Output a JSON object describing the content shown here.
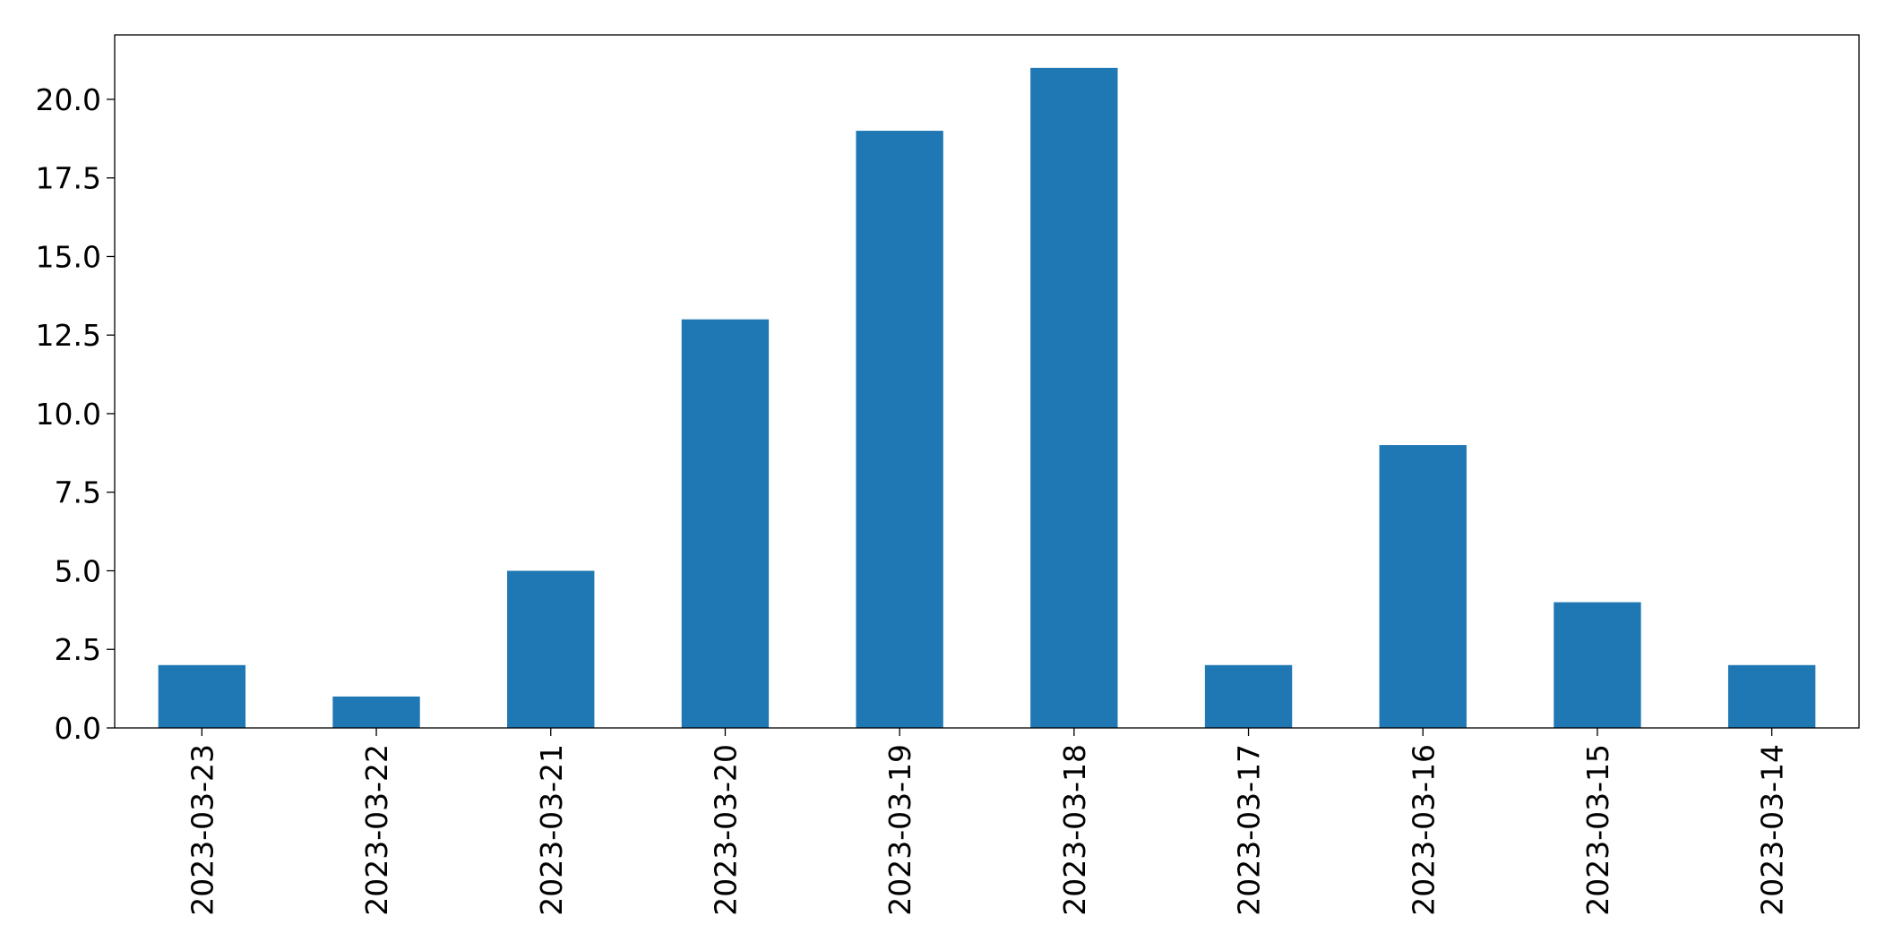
{
  "chart_data": {
    "type": "bar",
    "categories": [
      "2023-03-23",
      "2023-03-22",
      "2023-03-21",
      "2023-03-20",
      "2023-03-19",
      "2023-03-18",
      "2023-03-17",
      "2023-03-16",
      "2023-03-15",
      "2023-03-14"
    ],
    "values": [
      2,
      1,
      5,
      13,
      19,
      21,
      2,
      9,
      4,
      2
    ],
    "color": "#1f77b4",
    "ylim": [
      0,
      22.05
    ],
    "yticks": [
      {
        "value": 0,
        "label": "0.0"
      },
      2.5,
      {
        "value": 5,
        "label": "5.0"
      },
      7.5,
      {
        "value": 10,
        "label": "10.0"
      },
      12.5,
      {
        "value": 15,
        "label": "15.0"
      },
      17.5,
      {
        "value": 20,
        "label": "20.0"
      }
    ],
    "grid": false
  }
}
